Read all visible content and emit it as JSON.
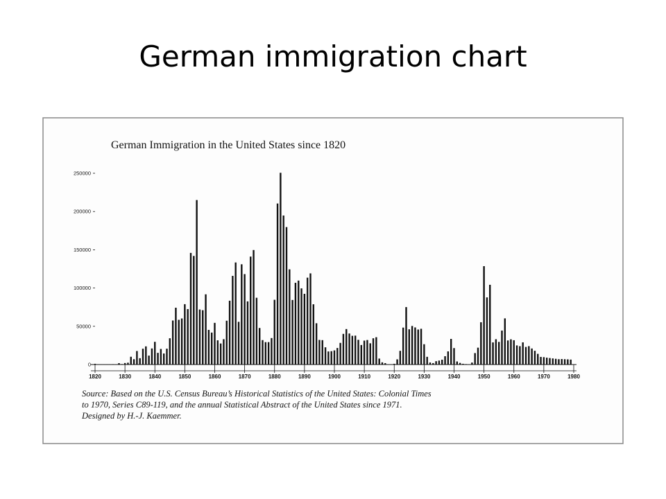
{
  "slide_title": "German immigration chart",
  "chart_data": {
    "type": "bar",
    "title": "German Immigration in the United States since 1820",
    "x": [
      1820,
      1821,
      1822,
      1823,
      1824,
      1825,
      1826,
      1827,
      1828,
      1829,
      1830,
      1831,
      1832,
      1833,
      1834,
      1835,
      1836,
      1837,
      1838,
      1839,
      1840,
      1841,
      1842,
      1843,
      1844,
      1845,
      1846,
      1847,
      1848,
      1849,
      1850,
      1851,
      1852,
      1853,
      1854,
      1855,
      1856,
      1857,
      1858,
      1859,
      1860,
      1861,
      1862,
      1863,
      1864,
      1865,
      1866,
      1867,
      1868,
      1869,
      1870,
      1871,
      1872,
      1873,
      1874,
      1875,
      1876,
      1877,
      1878,
      1879,
      1880,
      1881,
      1882,
      1883,
      1884,
      1885,
      1886,
      1887,
      1888,
      1889,
      1890,
      1891,
      1892,
      1893,
      1894,
      1895,
      1896,
      1897,
      1898,
      1899,
      1900,
      1901,
      1902,
      1903,
      1904,
      1905,
      1906,
      1907,
      1908,
      1909,
      1910,
      1911,
      1912,
      1913,
      1914,
      1915,
      1916,
      1917,
      1918,
      1919,
      1920,
      1921,
      1922,
      1923,
      1924,
      1925,
      1926,
      1927,
      1928,
      1929,
      1930,
      1931,
      1932,
      1933,
      1934,
      1935,
      1936,
      1937,
      1938,
      1939,
      1940,
      1941,
      1942,
      1943,
      1944,
      1945,
      1946,
      1947,
      1948,
      1949,
      1950,
      1951,
      1952,
      1953,
      1954,
      1955,
      1956,
      1957,
      1958,
      1959,
      1960,
      1961,
      1962,
      1963,
      1964,
      1965,
      1966,
      1967,
      1968,
      1969,
      1970,
      1971,
      1972,
      1973,
      1974,
      1975,
      1976,
      1977,
      1978,
      1979
    ],
    "values": [
      968,
      383,
      148,
      183,
      230,
      450,
      511,
      432,
      1851,
      597,
      1976,
      2413,
      10194,
      6988,
      17686,
      8311,
      20707,
      23740,
      11683,
      21028,
      29704,
      15291,
      20370,
      14441,
      20731,
      34355,
      57561,
      74281,
      58465,
      60235,
      78896,
      72482,
      145918,
      141946,
      215009,
      71918,
      71028,
      91781,
      45310,
      41784,
      54491,
      31661,
      27529,
      33162,
      57276,
      83424,
      115892,
      133426,
      55831,
      131042,
      118225,
      82554,
      141109,
      149671,
      87291,
      47769,
      31937,
      29298,
      29313,
      34602,
      84638,
      210485,
      250630,
      194786,
      179676,
      124443,
      84403,
      106865,
      109717,
      99538,
      92427,
      113554,
      119168,
      78756,
      53989,
      32173,
      31885,
      22533,
      17111,
      17476,
      18507,
      21651,
      28304,
      40086,
      46380,
      40574,
      37564,
      37807,
      32309,
      25540,
      31283,
      32061,
      27788,
      34329,
      35734,
      7799,
      2877,
      1857,
      447,
      52,
      1001,
      6803,
      17931,
      48277,
      75091,
      46068,
      50421,
      48513,
      45778,
      46751,
      26569,
      10100,
      2670,
      1919,
      4392,
      5201,
      6346,
      10895,
      17199,
      33515,
      21520,
      4028,
      2150,
      1000,
      600,
      300,
      2598,
      14986,
      22058,
      55284,
      128592,
      87755,
      104236,
      28927,
      33098,
      29596,
      44409,
      60353,
      31500,
      33000,
      31768,
      25000,
      24000,
      29000,
      23000,
      24045,
      21000,
      18000,
      14000,
      10000,
      9684,
      9000,
      8500,
      8000,
      7500,
      7000,
      7200,
      7000,
      6800,
      6500
    ],
    "color": "#111111",
    "xlim": [
      1820,
      1980
    ],
    "xticks": [
      1820,
      1830,
      1840,
      1850,
      1860,
      1870,
      1880,
      1890,
      1900,
      1910,
      1920,
      1930,
      1940,
      1950,
      1960,
      1970,
      1980
    ],
    "ylim": [
      0,
      250000
    ],
    "yticks": [
      0,
      50000,
      100000,
      150000,
      200000,
      250000
    ],
    "source": [
      "Source: Based on the U.S. Census Bureau’s Historical Statistics of the United States: Colonial Times",
      "to 1970, Series C89-119, and the annual Statistical Abstract of the United States since 1971.",
      "Designed by H.-J. Kaemmer."
    ]
  }
}
